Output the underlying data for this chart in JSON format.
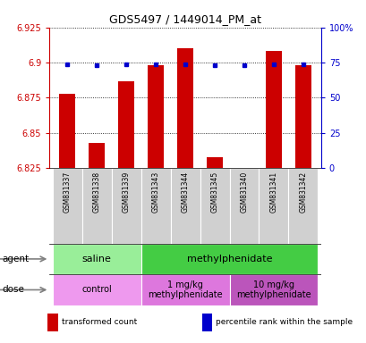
{
  "title": "GDS5497 / 1449014_PM_at",
  "samples": [
    "GSM831337",
    "GSM831338",
    "GSM831339",
    "GSM831343",
    "GSM831344",
    "GSM831345",
    "GSM831340",
    "GSM831341",
    "GSM831342"
  ],
  "transformed_count": [
    6.878,
    6.843,
    6.887,
    6.898,
    6.91,
    6.833,
    6.824,
    6.908,
    6.898
  ],
  "percentile_rank": [
    74,
    73,
    74,
    74,
    74,
    73,
    73,
    74,
    74
  ],
  "y_min": 6.825,
  "y_max": 6.925,
  "y_ticks": [
    6.825,
    6.85,
    6.875,
    6.9,
    6.925
  ],
  "y_tick_labels": [
    "6.825",
    "6.85",
    "6.875",
    "6.9",
    "6.925"
  ],
  "right_y_ticks": [
    0,
    25,
    50,
    75,
    100
  ],
  "right_y_tick_labels": [
    "0",
    "25",
    "50",
    "75",
    "100%"
  ],
  "bar_color": "#cc0000",
  "dot_color": "#0000cc",
  "agent_groups": [
    {
      "label": "saline",
      "start": 0,
      "end": 3,
      "color": "#99ee99"
    },
    {
      "label": "methylphenidate",
      "start": 3,
      "end": 9,
      "color": "#44cc44"
    }
  ],
  "dose_groups": [
    {
      "label": "control",
      "start": 0,
      "end": 3,
      "color": "#ee99ee"
    },
    {
      "label": "1 mg/kg\nmethylphenidate",
      "start": 3,
      "end": 6,
      "color": "#dd77dd"
    },
    {
      "label": "10 mg/kg\nmethylphenidate",
      "start": 6,
      "end": 9,
      "color": "#bb55bb"
    }
  ],
  "legend_items": [
    {
      "color": "#cc0000",
      "label": "transformed count"
    },
    {
      "color": "#0000cc",
      "label": "percentile rank within the sample"
    }
  ],
  "tick_label_color_left": "#cc0000",
  "tick_label_color_right": "#0000cc",
  "sample_box_color": "#d0d0d0",
  "background_color": "#ffffff"
}
